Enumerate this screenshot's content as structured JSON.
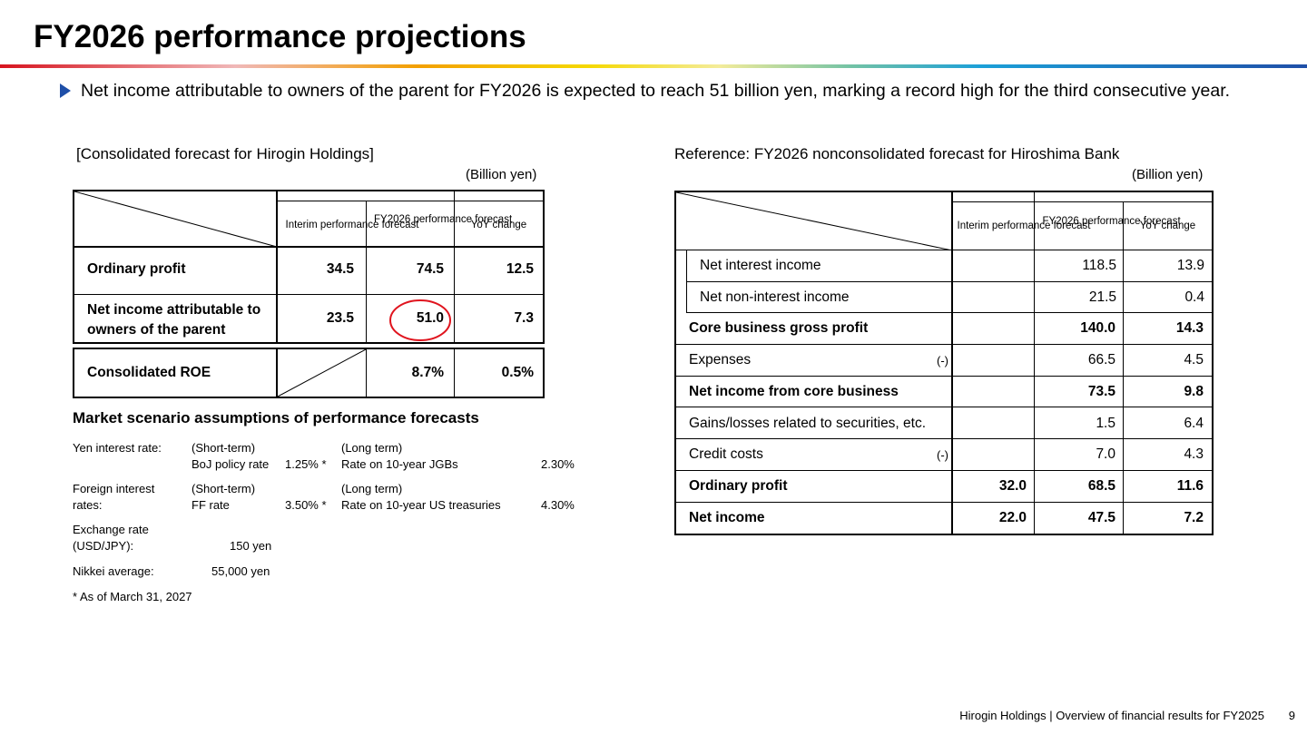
{
  "title": "FY2026 performance projections",
  "lead": "Net income attributable to owners of the parent for FY2026 is expected to reach 51 billion yen, marking a record high for the third consecutive year.",
  "left": {
    "heading": "[Consolidated forecast for Hirogin Holdings]",
    "unit": "(Billion yen)",
    "col_headers": [
      "Interim performance forecast",
      "FY2026 performance forecast",
      "YoY change"
    ],
    "rows": [
      {
        "label": "Ordinary profit",
        "interim": "34.5",
        "fy": "74.5",
        "yoy": "12.5"
      },
      {
        "label": "Net income attributable to owners of the parent",
        "interim": "23.5",
        "fy": "51.0",
        "yoy": "7.3"
      }
    ],
    "roe": {
      "label": "Consolidated ROE",
      "fy": "8.7%",
      "yoy": "0.5%"
    }
  },
  "market": {
    "heading": "Market scenario assumptions of performance forecasts",
    "yen_label": "Yen interest rate:",
    "yen_short_label": "(Short-term)",
    "yen_short_item": "BoJ policy rate",
    "yen_short_value": "1.25% *",
    "yen_long_label": "(Long term)",
    "yen_long_item": "Rate on 10-year JGBs",
    "yen_long_value": "2.30%",
    "foreign_label_1": "Foreign interest",
    "foreign_label_2": "rates:",
    "foreign_short_label": "(Short-term)",
    "foreign_short_item": "FF rate",
    "foreign_short_value": "3.50% *",
    "foreign_long_label": "(Long term)",
    "foreign_long_item": "Rate on 10-year US treasuries",
    "foreign_long_value": "4.30%",
    "fx_label_1": "Exchange rate",
    "fx_label_2": "(USD/JPY):",
    "fx_value": "150 yen",
    "nikkei_label": "Nikkei average:",
    "nikkei_value": "55,000 yen",
    "note": "* As of March 31, 2027"
  },
  "right": {
    "heading": "Reference:  FY2026 nonconsolidated forecast for Hiroshima Bank",
    "unit": "(Billion yen)",
    "col_headers": [
      "Interim performance forecast",
      "FY2026 performance forecast",
      "YoY change"
    ],
    "rows": [
      {
        "label": "Net interest income",
        "minus": "",
        "interim": "",
        "fy": "118.5",
        "yoy": "13.9",
        "bold": false,
        "indent": true
      },
      {
        "label": "Net non-interest income",
        "minus": "",
        "interim": "",
        "fy": "21.5",
        "yoy": "0.4",
        "bold": false,
        "indent": true
      },
      {
        "label": "Core business gross profit",
        "minus": "",
        "interim": "",
        "fy": "140.0",
        "yoy": "14.3",
        "bold": true,
        "indent": false
      },
      {
        "label": "Expenses",
        "minus": "(-)",
        "interim": "",
        "fy": "66.5",
        "yoy": "4.5",
        "bold": false,
        "indent": false
      },
      {
        "label": "Net income from core business",
        "minus": "",
        "interim": "",
        "fy": "73.5",
        "yoy": "9.8",
        "bold": true,
        "indent": false
      },
      {
        "label": "Gains/losses related to securities, etc.",
        "minus": "",
        "interim": "",
        "fy": "1.5",
        "yoy": "6.4",
        "bold": false,
        "indent": false
      },
      {
        "label": "Credit costs",
        "minus": "(-)",
        "interim": "",
        "fy": "7.0",
        "yoy": "4.3",
        "bold": false,
        "indent": false
      },
      {
        "label": "Ordinary profit",
        "minus": "",
        "interim": "32.0",
        "fy": "68.5",
        "yoy": "11.6",
        "bold": true,
        "indent": false
      },
      {
        "label": "Net income",
        "minus": "",
        "interim": "22.0",
        "fy": "47.5",
        "yoy": "7.2",
        "bold": true,
        "indent": false
      }
    ]
  },
  "footer": "Hirogin Holdings | Overview of financial results for FY2025",
  "page_number": "9",
  "colors": {
    "accent": "#1f4fa8",
    "highlight_circle": "#e0141e"
  }
}
